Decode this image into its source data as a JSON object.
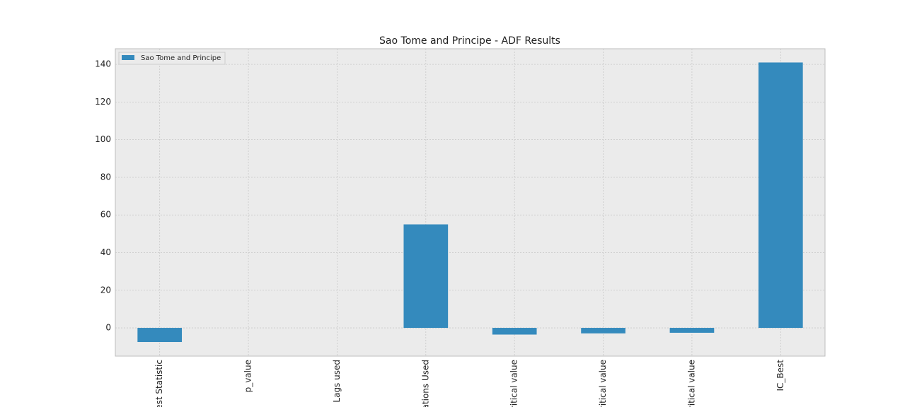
{
  "chart_data": {
    "type": "bar",
    "title": "Sao Tome and Principe - ADF Results",
    "categories": [
      "est Statistic",
      "p_value",
      "Lags used",
      "ations Used",
      "ritical value",
      "ritical value",
      "ritical value",
      "IC_Best"
    ],
    "series": [
      {
        "name": "Sao Tome and Principe",
        "color": "#348abd",
        "values": [
          -7.5,
          0.0,
          0,
          55,
          -3.55,
          -2.91,
          -2.59,
          141
        ]
      }
    ],
    "ylim": [
      -15,
      148.3
    ],
    "yticks": [
      0,
      20,
      40,
      60,
      80,
      100,
      120,
      140
    ],
    "grid": true,
    "legend": "upper left"
  }
}
